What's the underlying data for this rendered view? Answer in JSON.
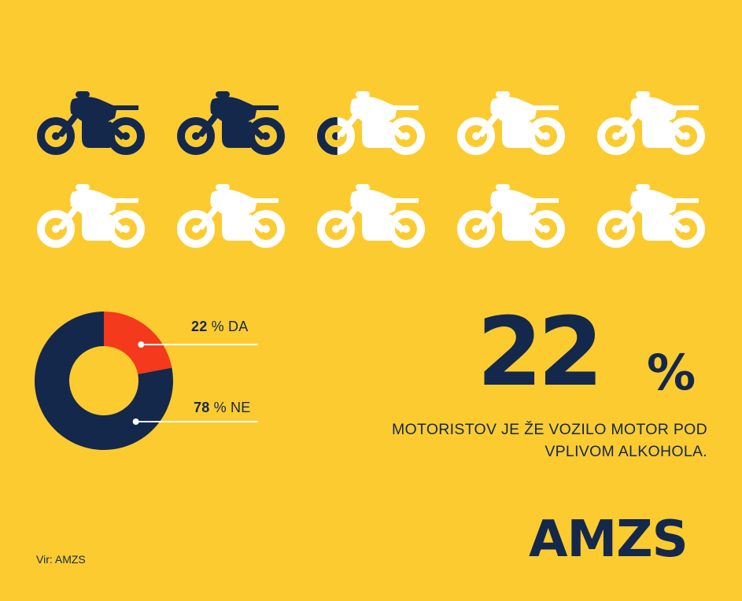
{
  "colors": {
    "background": "#FCCB30",
    "navy": "#14284B",
    "red": "#F4391C",
    "white": "#FFFFFF"
  },
  "pictogram": {
    "icon": "motorcycle-icon",
    "total": 10,
    "filled_fraction": 0.22
  },
  "chart_data": {
    "type": "pie",
    "slices": [
      {
        "label": "DA",
        "value": 22,
        "color": "#F4391C"
      },
      {
        "label": "NE",
        "value": 78,
        "color": "#14284B"
      }
    ]
  },
  "labels": {
    "da_value": "22",
    "da_text": "% DA",
    "ne_value": "78",
    "ne_text": "% NE"
  },
  "headline": {
    "number": "22",
    "unit": "%",
    "caption_line1": "MOTORISTOV JE ŽE VOZILO MOTOR POD",
    "caption_line2": "VPLIVOM ALKOHOLA."
  },
  "logo": "AMZS",
  "source": "Vir: AMZS"
}
